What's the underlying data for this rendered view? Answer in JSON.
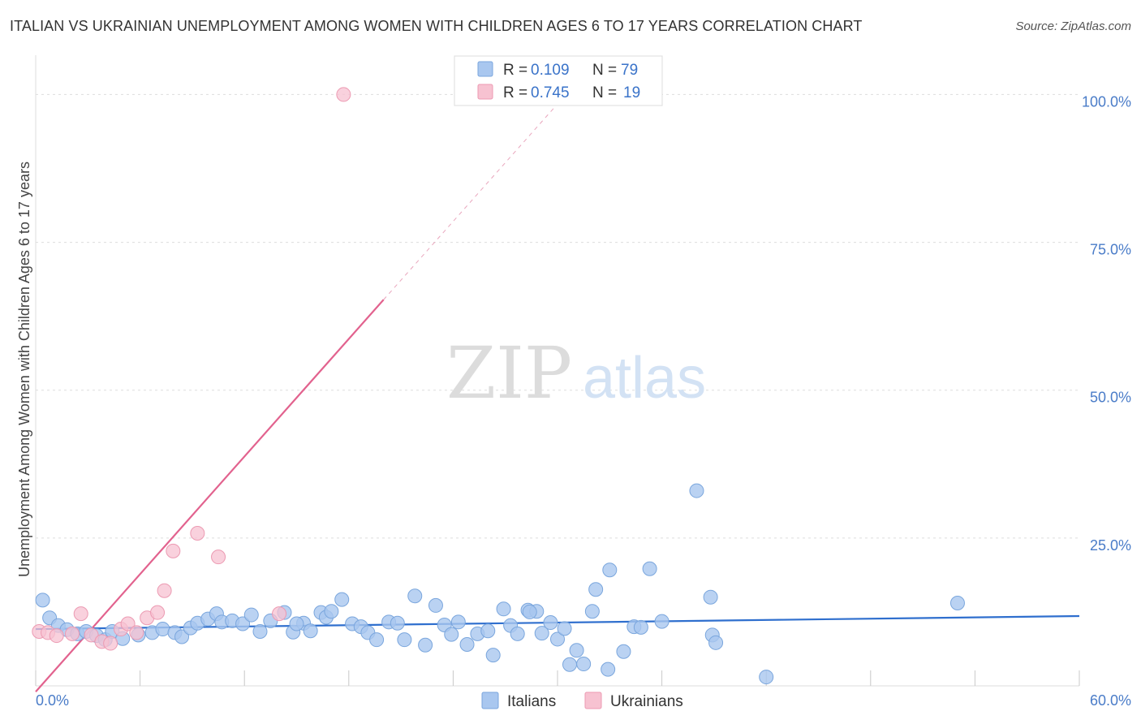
{
  "header": {
    "title": "ITALIAN VS UKRAINIAN UNEMPLOYMENT AMONG WOMEN WITH CHILDREN AGES 6 TO 17 YEARS CORRELATION CHART",
    "source": "Source: ZipAtlas.com"
  },
  "watermark": {
    "zip": "ZIP",
    "atlas": "atlas"
  },
  "legend_box": {
    "r_label": "R =",
    "n_label": "N =",
    "italians": {
      "r": "0.109",
      "n": "79"
    },
    "ukrainians": {
      "r": "0.745",
      "n": "19"
    }
  },
  "legend_bottom": {
    "italians": "Italians",
    "ukrainians": "Ukrainians"
  },
  "colors": {
    "italians_fill": "#a9c7ef",
    "italians_stroke": "#7aa6dd",
    "italians_line": "#2f6fce",
    "ukrainians_fill": "#f7c2d1",
    "ukrainians_stroke": "#ec9ab2",
    "ukrainians_line": "#e2628e",
    "tick_text": "#4a7cc8"
  },
  "chart_data": {
    "type": "scatter",
    "title": "ITALIAN VS UKRAINIAN UNEMPLOYMENT AMONG WOMEN WITH CHILDREN AGES 6 TO 17 YEARS CORRELATION CHART",
    "xlabel": "",
    "ylabel": "Unemployment Among Women with Children Ages 6 to 17 years",
    "xlim": [
      0,
      60
    ],
    "ylim": [
      0,
      105
    ],
    "x_ticks": [
      "0.0%",
      "60.0%"
    ],
    "y_ticks": [
      {
        "value": 25,
        "label": "25.0%"
      },
      {
        "value": 50,
        "label": "50.0%"
      },
      {
        "value": 75,
        "label": "75.0%"
      },
      {
        "value": 100,
        "label": "100.0%"
      }
    ],
    "series": [
      {
        "name": "Italians",
        "R": 0.109,
        "N": 79,
        "trend": {
          "x0": 0,
          "y0": 9.6,
          "x1": 60,
          "y1": 11.8
        },
        "points": [
          [
            0.4,
            14.5
          ],
          [
            0.8,
            11.5
          ],
          [
            1.3,
            10.2
          ],
          [
            1.8,
            9.5
          ],
          [
            2.4,
            8.8
          ],
          [
            2.9,
            9.2
          ],
          [
            3.5,
            8.5
          ],
          [
            4.0,
            7.8
          ],
          [
            4.4,
            9.2
          ],
          [
            5.0,
            8.0
          ],
          [
            5.9,
            8.6
          ],
          [
            6.7,
            9.0
          ],
          [
            7.3,
            9.6
          ],
          [
            8.0,
            9.0
          ],
          [
            8.4,
            8.3
          ],
          [
            8.9,
            9.8
          ],
          [
            9.3,
            10.6
          ],
          [
            9.9,
            11.3
          ],
          [
            10.4,
            12.2
          ],
          [
            10.7,
            10.8
          ],
          [
            11.3,
            11.0
          ],
          [
            11.9,
            10.5
          ],
          [
            12.4,
            12.0
          ],
          [
            12.9,
            9.2
          ],
          [
            13.5,
            11.0
          ],
          [
            14.3,
            12.4
          ],
          [
            14.8,
            9.1
          ],
          [
            15.4,
            10.6
          ],
          [
            15.8,
            9.3
          ],
          [
            16.4,
            12.4
          ],
          [
            16.7,
            11.6
          ],
          [
            17.0,
            12.6
          ],
          [
            17.6,
            14.6
          ],
          [
            18.2,
            10.5
          ],
          [
            18.7,
            10.0
          ],
          [
            19.1,
            9.0
          ],
          [
            19.6,
            7.8
          ],
          [
            20.3,
            10.8
          ],
          [
            20.8,
            10.6
          ],
          [
            21.2,
            7.8
          ],
          [
            21.8,
            15.2
          ],
          [
            22.4,
            6.9
          ],
          [
            23.0,
            13.6
          ],
          [
            23.5,
            10.3
          ],
          [
            23.9,
            8.7
          ],
          [
            24.3,
            10.8
          ],
          [
            24.8,
            7.0
          ],
          [
            25.4,
            8.8
          ],
          [
            26.0,
            9.3
          ],
          [
            26.3,
            5.2
          ],
          [
            26.9,
            13.0
          ],
          [
            27.3,
            10.2
          ],
          [
            27.7,
            8.8
          ],
          [
            28.3,
            12.8
          ],
          [
            28.8,
            12.6
          ],
          [
            29.1,
            8.9
          ],
          [
            29.6,
            10.7
          ],
          [
            30.0,
            7.9
          ],
          [
            30.7,
            3.6
          ],
          [
            31.1,
            6.0
          ],
          [
            31.5,
            3.7
          ],
          [
            32.0,
            12.6
          ],
          [
            32.2,
            16.3
          ],
          [
            32.9,
            2.8
          ],
          [
            33.0,
            19.6
          ],
          [
            33.8,
            5.8
          ],
          [
            34.4,
            10.0
          ],
          [
            34.8,
            9.9
          ],
          [
            35.3,
            19.8
          ],
          [
            36.0,
            10.9
          ],
          [
            38.0,
            33.0
          ],
          [
            38.8,
            15.0
          ],
          [
            38.9,
            8.6
          ],
          [
            39.1,
            7.3
          ],
          [
            42.0,
            1.5
          ],
          [
            53.0,
            14.0
          ],
          [
            30.4,
            9.7
          ],
          [
            28.4,
            12.5
          ],
          [
            15.0,
            10.5
          ]
        ]
      },
      {
        "name": "Ukrainians",
        "R": 0.745,
        "N": 19,
        "trend": {
          "x0": 0,
          "y0": -1.0,
          "x1": 20,
          "y1": 65.3,
          "dash_to_x": 30,
          "dash_to_y": 98.4
        },
        "points": [
          [
            0.2,
            9.2
          ],
          [
            0.7,
            9.0
          ],
          [
            1.2,
            8.5
          ],
          [
            2.1,
            8.8
          ],
          [
            2.6,
            12.2
          ],
          [
            3.2,
            8.6
          ],
          [
            3.8,
            7.5
          ],
          [
            4.3,
            7.2
          ],
          [
            4.9,
            9.6
          ],
          [
            5.3,
            10.5
          ],
          [
            5.8,
            9.0
          ],
          [
            6.4,
            11.5
          ],
          [
            7.0,
            12.4
          ],
          [
            7.4,
            16.1
          ],
          [
            7.9,
            22.8
          ],
          [
            9.3,
            25.8
          ],
          [
            10.5,
            21.8
          ],
          [
            14.0,
            12.2
          ],
          [
            17.7,
            100.0
          ]
        ]
      }
    ]
  }
}
